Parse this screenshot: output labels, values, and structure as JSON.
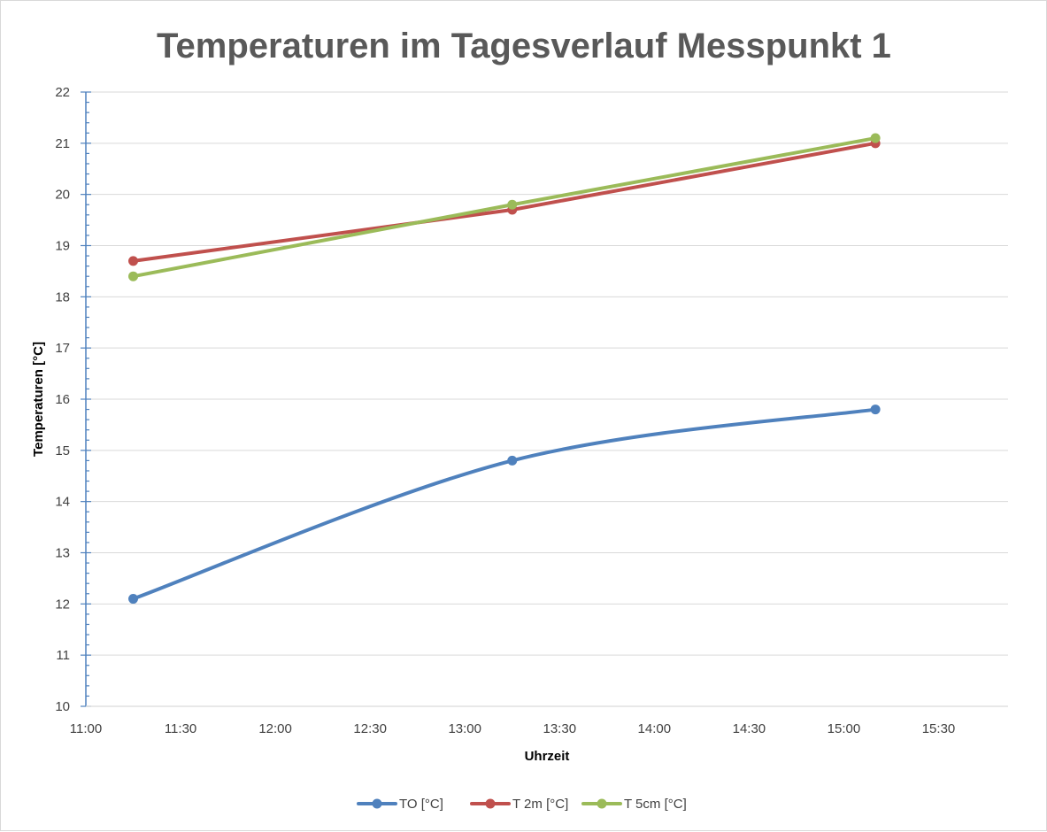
{
  "chart_data": {
    "type": "line",
    "title": "Temperaturen im Tagesverlauf Messpunkt 1",
    "xlabel": "Uhrzeit",
    "ylabel": "Temperaturen [°C]",
    "x_ticks": [
      "11:00",
      "11:30",
      "12:00",
      "12:30",
      "13:00",
      "13:30",
      "14:00",
      "14:30",
      "15:00",
      "15:30"
    ],
    "xlim": [
      "11:00",
      "15:52"
    ],
    "ylim": [
      10,
      22
    ],
    "y_ticks": [
      10,
      11,
      12,
      13,
      14,
      15,
      16,
      17,
      18,
      19,
      20,
      21,
      22
    ],
    "x": [
      "11:15",
      "13:15",
      "15:10"
    ],
    "series": [
      {
        "name": "TO [°C]",
        "values": [
          12.1,
          14.8,
          15.8
        ],
        "color": "#4f81bd",
        "smooth": true
      },
      {
        "name": "T 2m [°C]",
        "values": [
          18.7,
          19.7,
          21.0
        ],
        "color": "#c0504d",
        "smooth": false
      },
      {
        "name": "T 5cm [°C]",
        "values": [
          18.4,
          19.8,
          21.1
        ],
        "color": "#9bbb59",
        "smooth": false
      }
    ],
    "grid": true,
    "legend_position": "bottom"
  }
}
